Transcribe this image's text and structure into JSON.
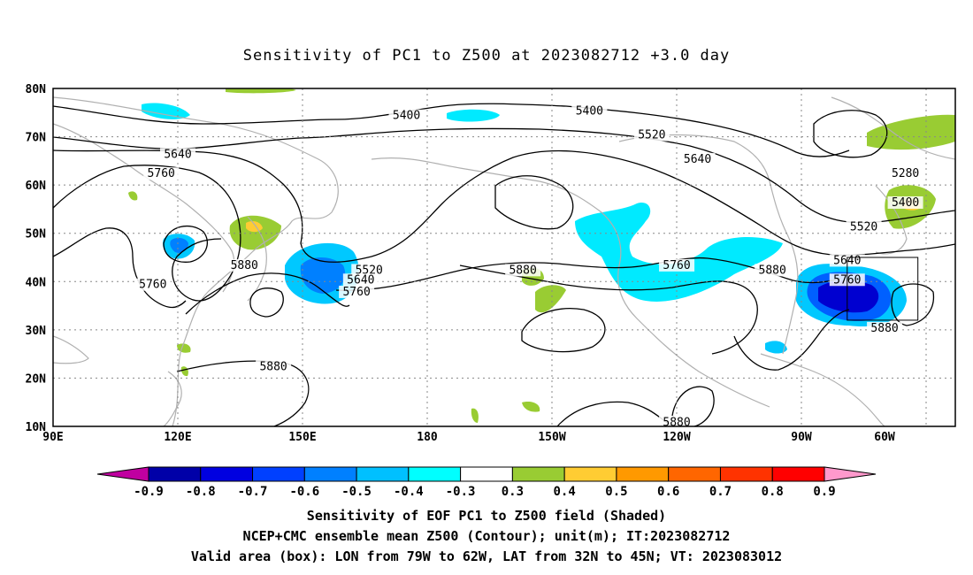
{
  "title": "Sensitivity of PC1 to Z500 at 2023082712 +3.0 day",
  "map": {
    "lat_labels": [
      "80N",
      "70N",
      "60N",
      "50N",
      "40N",
      "30N",
      "20N",
      "10N"
    ],
    "lon_labels": [
      "90E",
      "120E",
      "150E",
      "180",
      "150W",
      "120W",
      "90W",
      "60W"
    ],
    "lon_range": [
      90,
      307
    ],
    "lat_range": [
      10,
      80
    ],
    "valid_box": {
      "lon": [
        281,
        298
      ],
      "lat": [
        32,
        45
      ]
    },
    "contour_labels": [
      {
        "text": "5400",
        "lon": 175,
        "lat": 74
      },
      {
        "text": "5400",
        "lon": 219,
        "lat": 75
      },
      {
        "text": "5520",
        "lon": 234,
        "lat": 70
      },
      {
        "text": "5640",
        "lon": 120,
        "lat": 66
      },
      {
        "text": "5640",
        "lon": 245,
        "lat": 65
      },
      {
        "text": "5760",
        "lon": 116,
        "lat": 62
      },
      {
        "text": "5280",
        "lon": 295,
        "lat": 62
      },
      {
        "text": "5400",
        "lon": 295,
        "lat": 56
      },
      {
        "text": "5520",
        "lon": 285,
        "lat": 51
      },
      {
        "text": "5640",
        "lon": 281,
        "lat": 44
      },
      {
        "text": "5880",
        "lon": 136,
        "lat": 43
      },
      {
        "text": "5520",
        "lon": 166,
        "lat": 42
      },
      {
        "text": "5640",
        "lon": 164,
        "lat": 40
      },
      {
        "text": "5760",
        "lon": 163,
        "lat": 37.5
      },
      {
        "text": "5880",
        "lon": 203,
        "lat": 42
      },
      {
        "text": "5760",
        "lon": 240,
        "lat": 43
      },
      {
        "text": "5880",
        "lon": 263,
        "lat": 42
      },
      {
        "text": "5760",
        "lon": 281,
        "lat": 40
      },
      {
        "text": "5760",
        "lon": 114,
        "lat": 39
      },
      {
        "text": "5880",
        "lon": 290,
        "lat": 30
      },
      {
        "text": "5880",
        "lon": 143,
        "lat": 22
      },
      {
        "text": "5880",
        "lon": 240,
        "lat": 10.5
      }
    ]
  },
  "colorbar": {
    "labels": [
      "-0.9",
      "-0.8",
      "-0.7",
      "-0.6",
      "-0.5",
      "-0.4",
      "-0.3",
      "0.3",
      "0.4",
      "0.5",
      "0.6",
      "0.7",
      "0.8",
      "0.9"
    ],
    "colors": [
      "#c000a0",
      "#0000a8",
      "#0000e0",
      "#0040ff",
      "#0080ff",
      "#00c0ff",
      "#00ffff",
      "#ffffff",
      "#99cc33",
      "#ffcc33",
      "#ff9900",
      "#ff6600",
      "#ff3300",
      "#ff0000",
      "#ff99cc"
    ]
  },
  "caption": [
    "Sensitivity of EOF PC1 to Z500 field (Shaded)",
    "NCEP+CMC ensemble mean Z500 (Contour); unit(m); IT:2023082712",
    "Valid area (box): LON from 79W to 62W, LAT from 32N to 45N; VT: 2023083012"
  ]
}
